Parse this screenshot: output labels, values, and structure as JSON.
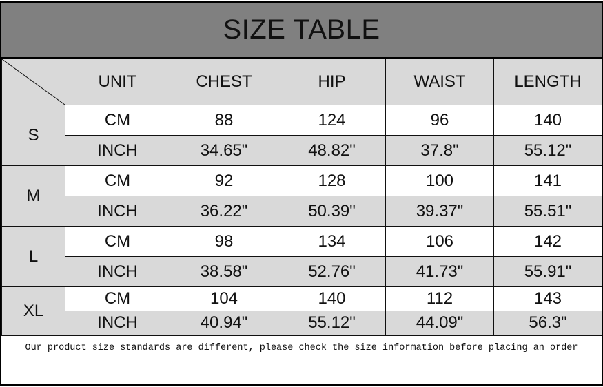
{
  "title": "SIZE TABLE",
  "headers": [
    "UNIT",
    "CHEST",
    "HIP",
    "WAIST",
    "LENGTH"
  ],
  "colors": {
    "title_bg": "#808080",
    "cell_gray": "#d9d9d9"
  },
  "sizes": [
    {
      "size": "S",
      "rows": [
        {
          "unit": "CM",
          "values": [
            "88",
            "124",
            "96",
            "140"
          ]
        },
        {
          "unit": "INCH",
          "values": [
            "34.65\"",
            "48.82\"",
            "37.8\"",
            "55.12\""
          ]
        }
      ]
    },
    {
      "size": "M",
      "rows": [
        {
          "unit": "CM",
          "values": [
            "92",
            "128",
            "100",
            "141"
          ]
        },
        {
          "unit": "INCH",
          "values": [
            "36.22\"",
            "50.39\"",
            "39.37\"",
            "55.51\""
          ]
        }
      ]
    },
    {
      "size": "L",
      "rows": [
        {
          "unit": "CM",
          "values": [
            "98",
            "134",
            "106",
            "142"
          ]
        },
        {
          "unit": "INCH",
          "values": [
            "38.58\"",
            "52.76\"",
            "41.73\"",
            "55.91\""
          ]
        }
      ]
    },
    {
      "size": "XL",
      "rows": [
        {
          "unit": "CM",
          "values": [
            "104",
            "140",
            "112",
            "143"
          ]
        },
        {
          "unit": "INCH",
          "values": [
            "40.94\"",
            "55.12\"",
            "44.09\"",
            "56.3\""
          ]
        }
      ]
    }
  ],
  "note": "Our product size standards are different, please check the size information before placing an order"
}
